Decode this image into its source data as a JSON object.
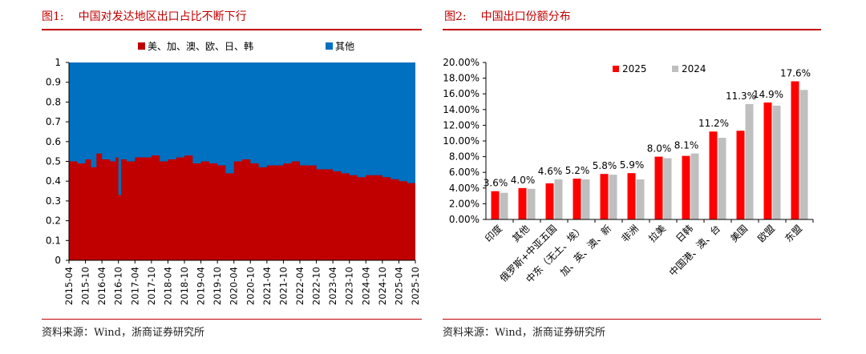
{
  "left_figure": {
    "figure_number": "图1:",
    "title": "中国对发达地区出口占比不断下行",
    "source": "资料来源：Wind，浙商证券研究所"
  },
  "right_figure": {
    "figure_number": "图2:",
    "title": "中国出口份额分布",
    "source": "资料来源：Wind，浙商证券研究所"
  },
  "chart_data": [
    {
      "type": "area",
      "stacked": true,
      "percent_stacked": true,
      "series": [
        {
          "name": "美、加、澳、欧、日、韩",
          "color": "#c00000"
        },
        {
          "name": "其他",
          "color": "#0070c0"
        }
      ],
      "legend_position": "top",
      "ylim": [
        0,
        1
      ],
      "yticks": [
        "0",
        "0.1",
        "0.2",
        "0.3",
        "0.4",
        "0.5",
        "0.6",
        "0.7",
        "0.8",
        "0.9",
        "1"
      ],
      "xticks": [
        "2015-04",
        "2015-10",
        "2016-04",
        "2016-10",
        "2017-04",
        "2017-10",
        "2018-04",
        "2018-10",
        "2019-04",
        "2019-10",
        "2020-04",
        "2020-10",
        "2021-04",
        "2021-10",
        "2022-04",
        "2022-10",
        "2023-04",
        "2023-10",
        "2024-04",
        "2024-10",
        "2025-04",
        "2025-10"
      ],
      "x_start": "2015-04",
      "x_end": "2025-10",
      "first_series_share": [
        [
          "2015-04",
          0.5
        ],
        [
          "2015-07",
          0.49
        ],
        [
          "2015-10",
          0.51
        ],
        [
          "2015-12",
          0.47
        ],
        [
          "2016-02",
          0.54
        ],
        [
          "2016-04",
          0.51
        ],
        [
          "2016-07",
          0.5
        ],
        [
          "2016-09",
          0.52
        ],
        [
          "2016-10",
          0.33
        ],
        [
          "2016-11",
          0.51
        ],
        [
          "2017-01",
          0.5
        ],
        [
          "2017-04",
          0.52
        ],
        [
          "2017-07",
          0.52
        ],
        [
          "2017-10",
          0.53
        ],
        [
          "2018-01",
          0.5
        ],
        [
          "2018-04",
          0.51
        ],
        [
          "2018-07",
          0.52
        ],
        [
          "2018-10",
          0.53
        ],
        [
          "2019-01",
          0.49
        ],
        [
          "2019-04",
          0.5
        ],
        [
          "2019-07",
          0.49
        ],
        [
          "2019-10",
          0.48
        ],
        [
          "2020-01",
          0.44
        ],
        [
          "2020-04",
          0.5
        ],
        [
          "2020-07",
          0.51
        ],
        [
          "2020-10",
          0.49
        ],
        [
          "2021-01",
          0.47
        ],
        [
          "2021-04",
          0.48
        ],
        [
          "2021-07",
          0.48
        ],
        [
          "2021-10",
          0.49
        ],
        [
          "2022-01",
          0.5
        ],
        [
          "2022-04",
          0.48
        ],
        [
          "2022-07",
          0.48
        ],
        [
          "2022-10",
          0.46
        ],
        [
          "2023-01",
          0.46
        ],
        [
          "2023-04",
          0.45
        ],
        [
          "2023-07",
          0.44
        ],
        [
          "2023-10",
          0.43
        ],
        [
          "2024-01",
          0.42
        ],
        [
          "2024-04",
          0.43
        ],
        [
          "2024-07",
          0.43
        ],
        [
          "2024-10",
          0.42
        ],
        [
          "2025-01",
          0.41
        ],
        [
          "2025-04",
          0.4
        ],
        [
          "2025-07",
          0.39
        ],
        [
          "2025-10",
          0.38
        ]
      ]
    },
    {
      "type": "bar",
      "categories": [
        "印度",
        "其他",
        "俄罗斯+中亚五国",
        "中东（无土、埃）",
        "加、英、澳、新",
        "非洲",
        "拉美",
        "日韩",
        "中国港、澳、台",
        "美国",
        "欧盟",
        "东盟"
      ],
      "series": [
        {
          "name": "2025",
          "color": "#ff0000",
          "values": [
            3.6,
            4.0,
            4.6,
            5.2,
            5.8,
            5.9,
            8.0,
            8.1,
            11.2,
            11.3,
            14.9,
            17.6
          ],
          "labels": [
            "3.6%",
            "4.0%",
            "4.6%",
            "5.2%",
            "5.8%",
            "5.9%",
            "8.0%",
            "8.1%",
            "11.2%",
            "11.3%",
            "14.9%",
            "17.6%"
          ]
        },
        {
          "name": "2024",
          "color": "#bfbfbf",
          "values": [
            3.4,
            3.9,
            5.1,
            5.1,
            5.7,
            5.1,
            7.8,
            8.4,
            10.4,
            14.7,
            14.5,
            16.5
          ]
        }
      ],
      "ylim": [
        0,
        20
      ],
      "yticks": [
        "0.00%",
        "2.00%",
        "4.00%",
        "6.00%",
        "8.00%",
        "10.00%",
        "12.00%",
        "14.00%",
        "16.00%",
        "18.00%",
        "20.00%"
      ],
      "legend_position": "top"
    }
  ]
}
